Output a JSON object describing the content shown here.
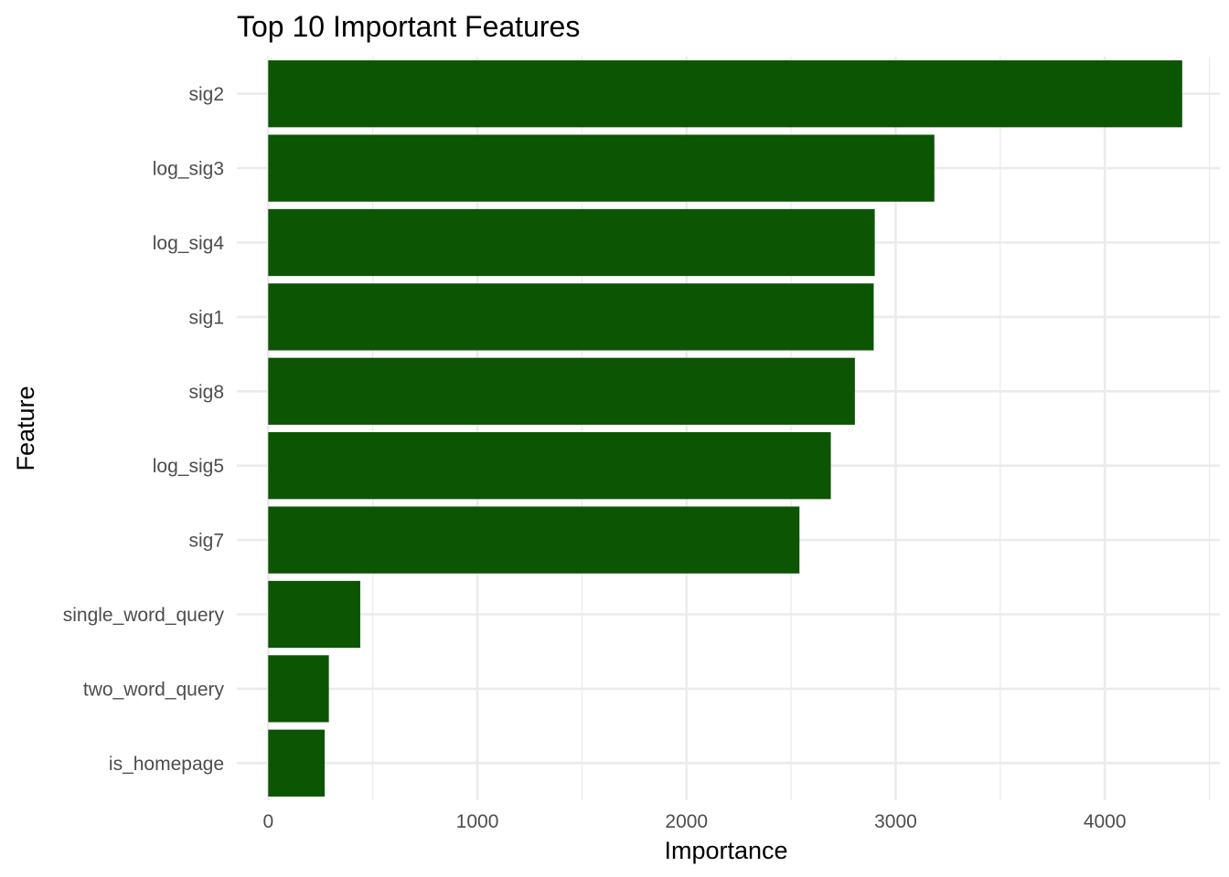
{
  "chart_data": {
    "type": "bar",
    "orientation": "horizontal",
    "title": "Top 10 Important Features",
    "xlabel": "Importance",
    "ylabel": "Feature",
    "categories": [
      "sig2",
      "log_sig3",
      "log_sig4",
      "sig1",
      "sig8",
      "log_sig5",
      "sig7",
      "single_word_query",
      "two_word_query",
      "is_homepage"
    ],
    "values": [
      4370,
      3185,
      2900,
      2895,
      2805,
      2690,
      2540,
      440,
      290,
      270
    ],
    "xlim": [
      -150,
      4550
    ],
    "xticks": [
      0,
      1000,
      2000,
      3000,
      4000
    ],
    "grid": true,
    "legend": "none",
    "bar_color": "#0b5503"
  }
}
